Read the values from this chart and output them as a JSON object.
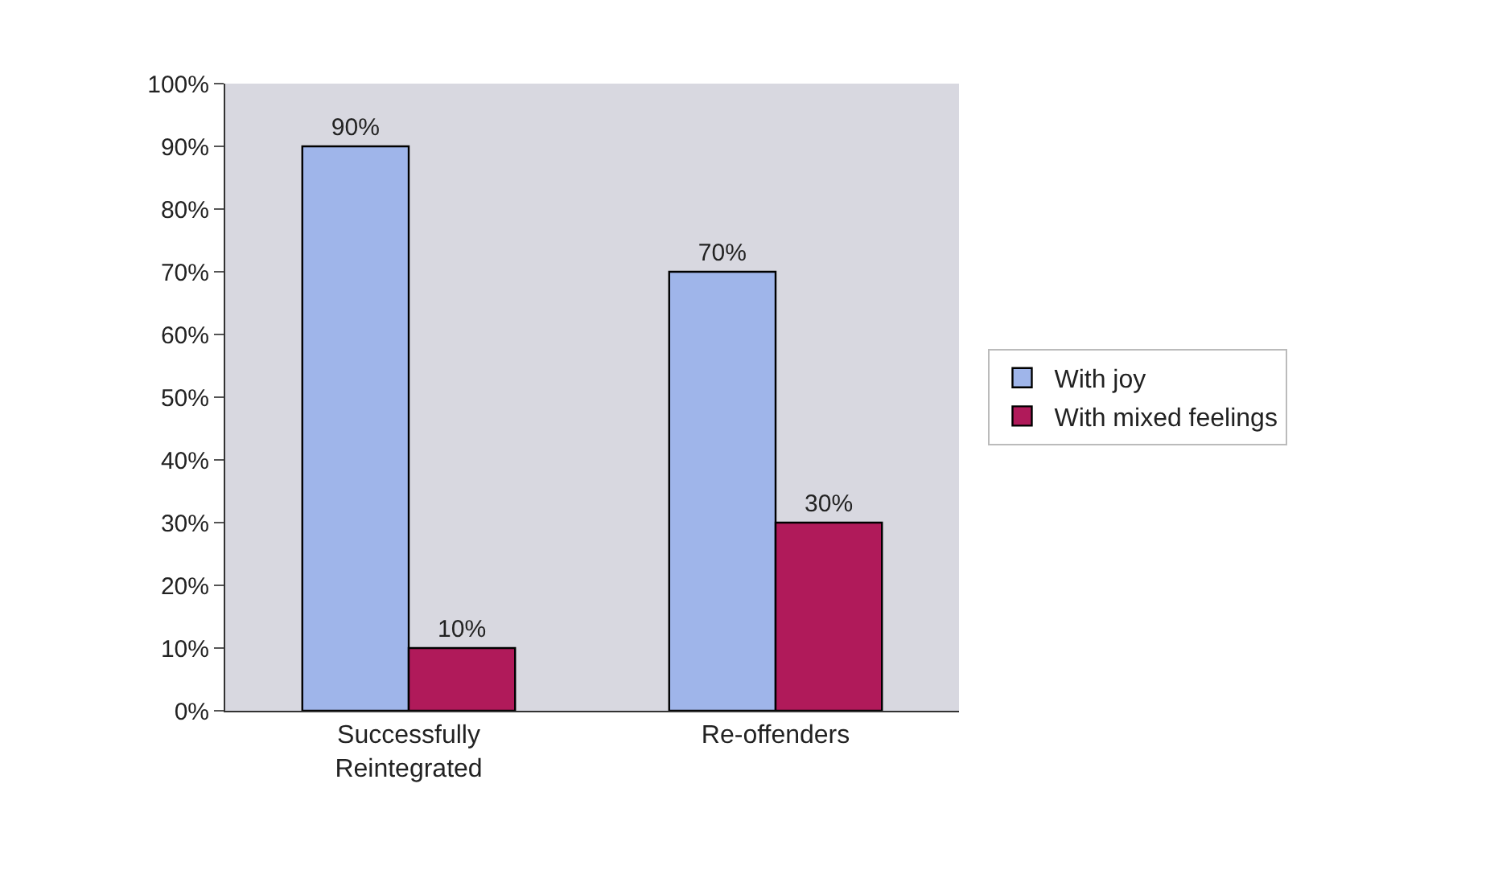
{
  "chart_data": {
    "type": "bar",
    "categories": [
      "Successfully Reintegrated",
      "Re-offenders"
    ],
    "series": [
      {
        "name": "With joy",
        "color": "#9fb5ea",
        "values": [
          90,
          70
        ],
        "value_labels": [
          "90%",
          "70%"
        ]
      },
      {
        "name": "With mixed feelings",
        "color": "#b01a5a",
        "values": [
          10,
          30
        ],
        "value_labels": [
          "10%",
          "30%"
        ]
      }
    ],
    "ylim": [
      0,
      100
    ],
    "yticks": [
      {
        "value": 0,
        "label": "0%"
      },
      {
        "value": 10,
        "label": "10%"
      },
      {
        "value": 20,
        "label": "20%"
      },
      {
        "value": 30,
        "label": "30%"
      },
      {
        "value": 40,
        "label": "40%"
      },
      {
        "value": 50,
        "label": "50%"
      },
      {
        "value": 60,
        "label": "60%"
      },
      {
        "value": 70,
        "label": "70%"
      },
      {
        "value": 80,
        "label": "80%"
      },
      {
        "value": 90,
        "label": "90%"
      },
      {
        "value": 100,
        "label": "100%"
      }
    ],
    "grid": false,
    "legend": "right"
  }
}
